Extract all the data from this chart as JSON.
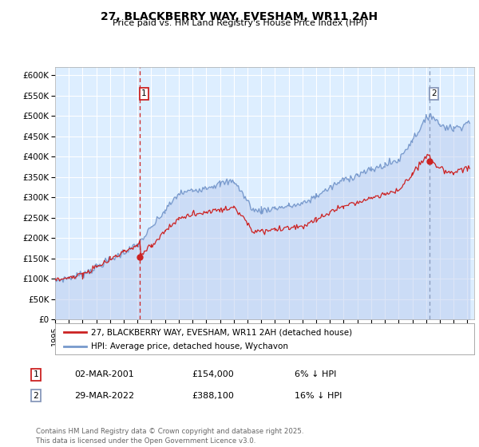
{
  "title": "27, BLACKBERRY WAY, EVESHAM, WR11 2AH",
  "subtitle": "Price paid vs. HM Land Registry's House Price Index (HPI)",
  "bg_color": "#ddeeff",
  "xmin": 1995.0,
  "xmax": 2025.5,
  "ymin": 0,
  "ymax": 620000,
  "yticks": [
    0,
    50000,
    100000,
    150000,
    200000,
    250000,
    300000,
    350000,
    400000,
    450000,
    500000,
    550000,
    600000
  ],
  "ytick_labels": [
    "£0",
    "£50K",
    "£100K",
    "£150K",
    "£200K",
    "£250K",
    "£300K",
    "£350K",
    "£400K",
    "£450K",
    "£500K",
    "£550K",
    "£600K"
  ],
  "xtick_years": [
    1995,
    1996,
    1997,
    1998,
    1999,
    2000,
    2001,
    2002,
    2003,
    2004,
    2005,
    2006,
    2007,
    2008,
    2009,
    2010,
    2011,
    2012,
    2013,
    2014,
    2015,
    2016,
    2017,
    2018,
    2019,
    2020,
    2021,
    2022,
    2023,
    2024,
    2025
  ],
  "vline1_x": 2001.17,
  "vline2_x": 2022.25,
  "vline1_color": "#cc2222",
  "vline2_color": "#8899bb",
  "marker1_label": "1",
  "marker2_label": "2",
  "legend_line1": "27, BLACKBERRY WAY, EVESHAM, WR11 2AH (detached house)",
  "legend_line2": "HPI: Average price, detached house, Wychavon",
  "table_rows": [
    {
      "num": "1",
      "date": "02-MAR-2001",
      "price": "£154,000",
      "pct": "6% ↓ HPI"
    },
    {
      "num": "2",
      "date": "29-MAR-2022",
      "price": "£388,100",
      "pct": "16% ↓ HPI"
    }
  ],
  "footer": "Contains HM Land Registry data © Crown copyright and database right 2025.\nThis data is licensed under the Open Government Licence v3.0.",
  "line_red": "#cc2222",
  "line_blue": "#7799cc",
  "line_blue_fill": "#bbccee"
}
